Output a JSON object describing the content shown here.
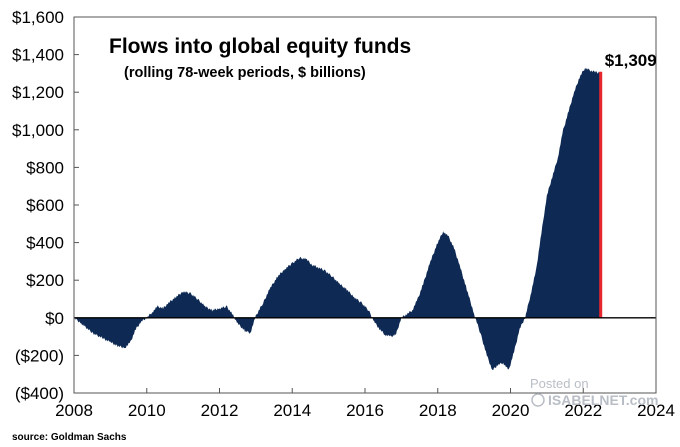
{
  "chart_data": {
    "type": "area",
    "title": "Flows into global equity funds",
    "subtitle": "(rolling  78-week periods, $ billions)",
    "xlabel": "",
    "ylabel": "",
    "xlim": [
      2008,
      2024
    ],
    "ylim": [
      -400,
      1600
    ],
    "x_ticks": [
      2008,
      2010,
      2012,
      2014,
      2016,
      2018,
      2020,
      2022,
      2024
    ],
    "x_tick_labels": [
      "2008",
      "2010",
      "2012",
      "2014",
      "2016",
      "2018",
      "2020",
      "2022",
      "2024"
    ],
    "y_ticks": [
      -400,
      -200,
      0,
      200,
      400,
      600,
      800,
      1000,
      1200,
      1400,
      1600
    ],
    "y_tick_labels": [
      "($400)",
      "($200)",
      "$0",
      "$200",
      "$400",
      "$600",
      "$800",
      "$1,000",
      "$1,200",
      "$1,400",
      "$1,600"
    ],
    "series": [
      {
        "name": "Flows into global equity funds",
        "color": "#0e2a54",
        "x": [
          2008.0,
          2008.2,
          2008.5,
          2008.8,
          2009.0,
          2009.2,
          2009.4,
          2009.55,
          2009.7,
          2009.85,
          2010.0,
          2010.15,
          2010.3,
          2010.45,
          2010.6,
          2010.8,
          2011.0,
          2011.2,
          2011.4,
          2011.6,
          2011.8,
          2012.0,
          2012.2,
          2012.35,
          2012.5,
          2012.7,
          2012.85,
          2013.0,
          2013.2,
          2013.4,
          2013.6,
          2013.8,
          2014.0,
          2014.2,
          2014.4,
          2014.55,
          2014.7,
          2014.9,
          2015.1,
          2015.3,
          2015.5,
          2015.7,
          2015.9,
          2016.1,
          2016.25,
          2016.4,
          2016.55,
          2016.7,
          2016.85,
          2017.0,
          2017.15,
          2017.3,
          2017.45,
          2017.6,
          2017.8,
          2018.0,
          2018.15,
          2018.3,
          2018.45,
          2018.6,
          2018.8,
          2019.0,
          2019.2,
          2019.35,
          2019.5,
          2019.65,
          2019.8,
          2019.95,
          2020.1,
          2020.25,
          2020.4,
          2020.55,
          2020.7,
          2020.85,
          2021.0,
          2021.15,
          2021.3,
          2021.45,
          2021.6,
          2021.75,
          2021.9,
          2022.05,
          2022.15,
          2022.25,
          2022.3,
          2022.4,
          2022.48
        ],
        "values": [
          0,
          -30,
          -80,
          -110,
          -130,
          -150,
          -160,
          -130,
          -60,
          -20,
          0,
          30,
          60,
          50,
          80,
          110,
          140,
          130,
          100,
          60,
          40,
          50,
          60,
          20,
          -30,
          -70,
          -80,
          10,
          80,
          160,
          220,
          260,
          290,
          320,
          310,
          280,
          270,
          250,
          220,
          180,
          150,
          110,
          80,
          40,
          -20,
          -60,
          -90,
          -100,
          -90,
          0,
          20,
          40,
          100,
          180,
          300,
          400,
          460,
          430,
          370,
          280,
          150,
          20,
          -100,
          -200,
          -280,
          -250,
          -240,
          -280,
          -180,
          -60,
          0,
          120,
          250,
          450,
          650,
          750,
          850,
          1000,
          1100,
          1200,
          1280,
          1330,
          1320,
          1310,
          1309,
          1305,
          1309
        ]
      }
    ],
    "annotations": [
      {
        "text": "$1,309",
        "x": 2022.48,
        "y": 1309
      }
    ],
    "grid": false,
    "zero_line": true,
    "end_marker_color": "#e8262d"
  },
  "source": "source: Goldman Sachs",
  "watermark": {
    "line1": "Posted on",
    "line2": "ISABELNET.com"
  }
}
